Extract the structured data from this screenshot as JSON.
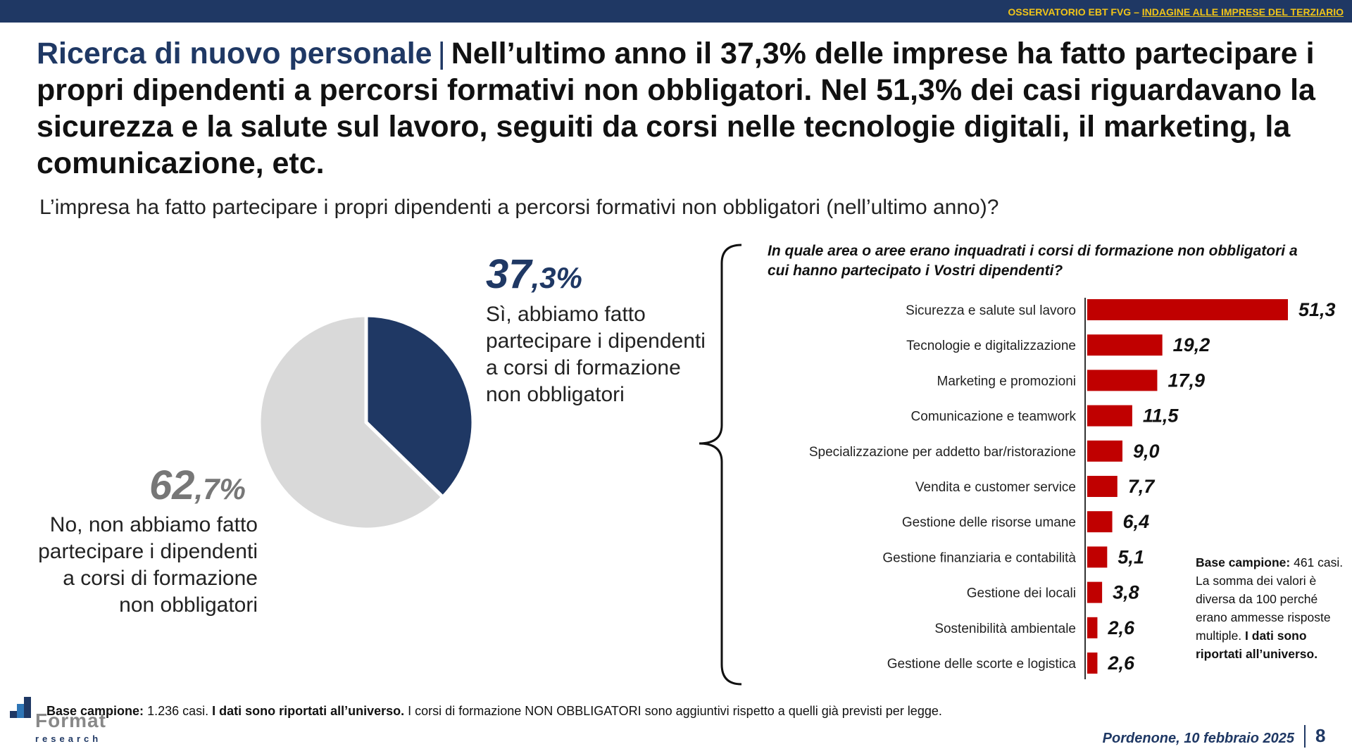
{
  "header": {
    "left": "OSSERVATORIO EBT FVG – ",
    "right": "INDAGINE ALLE IMPRESE DEL TERZIARIO"
  },
  "title": {
    "lead": "Ricerca di nuovo personale",
    "separator": "|",
    "text": "Nell’ultimo anno il 37,3% delle imprese ha fatto partecipare i propri dipendenti a percorsi formativi non obbligatori. Nel 51,3% dei casi riguardavano la sicurezza e la salute sul lavoro, seguiti da corsi nelle tecnologie digitali, il marketing, la comunicazione, etc."
  },
  "question": "L’impresa ha fatto partecipare i propri dipendenti a percorsi formativi non obbligatori (nell’ultimo anno)?",
  "pie": {
    "yes": {
      "int": "37",
      "dec": ",3%",
      "label": "Sì, abbiamo fatto partecipare i dipendenti a corsi di formazione non obbligatori"
    },
    "no": {
      "int": "62",
      "dec": ",7%",
      "label": "No, non abbiamo fatto partecipare i dipendenti a corsi di formazione non obbligatori"
    }
  },
  "bar_question": "In quale area o aree erano inquadrati i corsi di formazione non obbligatori a cui hanno partecipato i Vostri dipendenti?",
  "note_right": {
    "bold1": "Base campione:",
    "text1": " 461 casi. La somma dei valori è diversa da 100 perché erano ammesse risposte multiple. ",
    "bold2": "I dati sono riportati all’universo."
  },
  "footer": {
    "base_bold": "Base campione:",
    "base_text": " 1.236 casi. ",
    "universe_bold": "I dati sono riportati all’universo.",
    "rest": " I corsi di formazione NON OBBLIGATORI sono aggiuntivi rispetto a quelli già previsti per legge.",
    "place_date": "Pordenone, 10 febbraio 2025",
    "page": "8"
  },
  "logo": {
    "name": "Format",
    "sub": "research"
  },
  "colors": {
    "navy": "#1f3864",
    "bar_red": "#c00000",
    "pie_yes": "#1f3864",
    "pie_no": "#d9d9d9",
    "header_text": "#f0c419"
  },
  "chart_data": [
    {
      "type": "pie",
      "categories": [
        "Sì, abbiamo fatto partecipare i dipendenti a corsi di formazione non obbligatori",
        "No, non abbiamo fatto partecipare i dipendenti a corsi di formazione non obbligatori"
      ],
      "values": [
        37.3,
        62.7
      ],
      "value_labels": [
        "37,3%",
        "62,7%"
      ]
    },
    {
      "type": "bar",
      "orientation": "horizontal",
      "title": "In quale area o aree erano inquadrati i corsi di formazione non obbligatori a cui hanno partecipato i Vostri dipendenti?",
      "categories": [
        "Sicurezza e salute sul lavoro",
        "Tecnologie e digitalizzazione",
        "Marketing e promozioni",
        "Comunicazione e teamwork",
        "Specializzazione per addetto bar/ristorazione",
        "Vendita e customer service",
        "Gestione delle risorse umane",
        "Gestione finanziaria e contabilità",
        "Gestione dei locali",
        "Sostenibilità ambientale",
        "Gestione delle scorte e logistica"
      ],
      "values": [
        51.3,
        19.2,
        17.9,
        11.5,
        9.0,
        7.7,
        6.4,
        5.1,
        3.8,
        2.6,
        2.6
      ],
      "value_labels": [
        "51,3",
        "19,2",
        "17,9",
        "11,5",
        "9,0",
        "7,7",
        "6,4",
        "5,1",
        "3,8",
        "2,6",
        "2,6"
      ],
      "xlim": [
        0,
        51.3
      ],
      "grid": false
    }
  ]
}
